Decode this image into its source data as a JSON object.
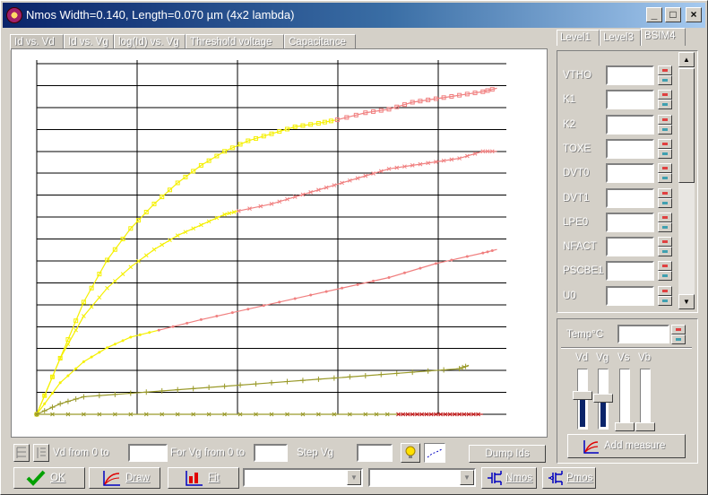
{
  "window": {
    "title": "Nmos Width=0.140, Length=0.070 µm (4x2 lambda)",
    "controls": [
      "_",
      "□",
      "×"
    ]
  },
  "tabs": [
    {
      "label": "Id vs. Vd",
      "active": true
    },
    {
      "label": "Id vs. Vg",
      "active": false
    },
    {
      "label": "log(Id) vs. Vg",
      "active": false
    },
    {
      "label": "Threshold voltage",
      "active": false
    },
    {
      "label": "Capacitance",
      "active": false
    }
  ],
  "model_tabs": [
    {
      "label": "Level1",
      "active": false
    },
    {
      "label": "Level3",
      "active": false
    },
    {
      "label": "BSIM4",
      "active": true
    }
  ],
  "params": [
    {
      "name": "VTHO",
      "value": ""
    },
    {
      "name": "K1",
      "value": ""
    },
    {
      "name": "K2",
      "value": ""
    },
    {
      "name": "TOXE",
      "value": ""
    },
    {
      "name": "DVT0",
      "value": ""
    },
    {
      "name": "DVT1",
      "value": ""
    },
    {
      "name": "LPE0",
      "value": ""
    },
    {
      "name": "NFACT",
      "value": ""
    },
    {
      "name": "PSCBE1",
      "value": ""
    },
    {
      "name": "U0",
      "value": ""
    }
  ],
  "temp": {
    "label": "Temp°C",
    "value": ""
  },
  "sliders": [
    {
      "label": "Vd",
      "level": 0.55
    },
    {
      "label": "Vg",
      "level": 0.5
    },
    {
      "label": "Vs",
      "level": 0
    },
    {
      "label": "Vb",
      "level": 0
    }
  ],
  "add_measure_label": "Add measure",
  "sweep": {
    "vd_label": "Vd from 0 to",
    "vd_value": "",
    "vg_label": "For Vg from 0 to",
    "vg_value": "",
    "step_label": "Step Vg",
    "step_value": ""
  },
  "dump_label": "Dump Ids",
  "buttons": {
    "ok": "OK",
    "draw": "Draw",
    "fit": "Fit",
    "nmos": "Nmos",
    "pmos": "Pmos"
  },
  "combos": [
    {
      "value": ""
    },
    {
      "value": ""
    }
  ],
  "colors": {
    "yellow": "#f5f000",
    "red": "#f08080",
    "olive": "#9a9a2a",
    "grid": "#000000",
    "title_start": "#0a246a",
    "title_end": "#a6caf0"
  },
  "chart_data": {
    "type": "line",
    "xlim": [
      0,
      1
    ],
    "ylim": [
      0,
      1
    ],
    "grid": true,
    "series": [
      {
        "color": "#f5f000",
        "marker": "square",
        "x": [
          0,
          0.05,
          0.1,
          0.15,
          0.2,
          0.25,
          0.3,
          0.35,
          0.4,
          0.45,
          0.5,
          0.55,
          0.6,
          0.64
        ],
        "y": [
          0,
          0.16,
          0.32,
          0.44,
          0.53,
          0.6,
          0.66,
          0.71,
          0.75,
          0.78,
          0.8,
          0.82,
          0.83,
          0.84
        ]
      },
      {
        "color": "#f08080",
        "marker": "square",
        "x": [
          0.64,
          0.7,
          0.75,
          0.8,
          0.85,
          0.9,
          0.95,
          0.98
        ],
        "y": [
          0.84,
          0.86,
          0.87,
          0.89,
          0.9,
          0.91,
          0.92,
          0.93
        ]
      },
      {
        "color": "#f5f000",
        "marker": "x",
        "x": [
          0,
          0.05,
          0.1,
          0.15,
          0.2,
          0.25,
          0.3,
          0.35,
          0.4,
          0.43
        ],
        "y": [
          0,
          0.16,
          0.28,
          0.36,
          0.42,
          0.47,
          0.51,
          0.54,
          0.57,
          0.58
        ]
      },
      {
        "color": "#f08080",
        "marker": "x",
        "x": [
          0.43,
          0.5,
          0.55,
          0.6,
          0.65,
          0.7,
          0.75,
          0.8,
          0.85,
          0.9,
          0.95,
          0.98
        ],
        "y": [
          0.58,
          0.6,
          0.62,
          0.64,
          0.66,
          0.68,
          0.7,
          0.71,
          0.72,
          0.73,
          0.75,
          0.75
        ]
      },
      {
        "color": "#f5f000",
        "marker": "dot",
        "x": [
          0,
          0.05,
          0.1,
          0.15,
          0.2,
          0.26
        ],
        "y": [
          0,
          0.09,
          0.15,
          0.19,
          0.22,
          0.24
        ]
      },
      {
        "color": "#f08080",
        "marker": "dot",
        "x": [
          0.26,
          0.35,
          0.45,
          0.55,
          0.65,
          0.75,
          0.85,
          0.95,
          0.98
        ],
        "y": [
          0.24,
          0.27,
          0.3,
          0.33,
          0.36,
          0.39,
          0.43,
          0.46,
          0.47
        ]
      },
      {
        "color": "#9a9a2a",
        "marker": "plus",
        "x": [
          0,
          0.05,
          0.1,
          0.2,
          0.3,
          0.4,
          0.5,
          0.6,
          0.7,
          0.8,
          0.9,
          0.92
        ],
        "y": [
          0,
          0.03,
          0.05,
          0.06,
          0.07,
          0.08,
          0.09,
          0.1,
          0.11,
          0.12,
          0.13,
          0.14
        ]
      },
      {
        "color": "#9a9a2a",
        "marker": "x",
        "x": [
          0,
          0.1,
          0.2,
          0.3,
          0.4,
          0.5,
          0.6,
          0.7,
          0.77
        ],
        "y": [
          0,
          0,
          0,
          0,
          0,
          0,
          0,
          0,
          0
        ]
      },
      {
        "color": "#c02020",
        "marker": "x",
        "x": [
          0.77,
          0.8,
          0.83,
          0.86,
          0.89,
          0.92,
          0.95
        ],
        "y": [
          0,
          0,
          0,
          0,
          0,
          0,
          0
        ]
      }
    ]
  }
}
